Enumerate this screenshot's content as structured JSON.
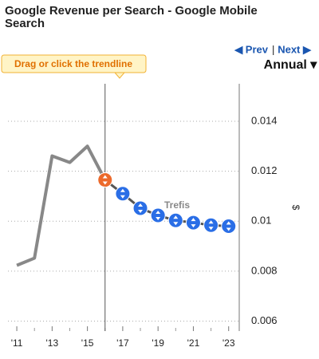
{
  "chart_data": {
    "type": "line",
    "title": "Google Revenue per Search - Google Mobile Search",
    "nav_prev": "◀ Prev",
    "nav_next": "Next ▶",
    "period": "Annual ▾",
    "hint": "Drag or click the trendline",
    "annotation": "Trefis",
    "y_label": "$",
    "x": [
      2011,
      2012,
      2013,
      2014,
      2015,
      2016,
      2017,
      2018,
      2019,
      2020,
      2021,
      2022,
      2023
    ],
    "series": [
      {
        "color": "#888888",
        "values": [
          0.00823,
          0.00852,
          0.01261,
          0.01235,
          0.013,
          0.01165,
          null,
          null,
          null,
          null,
          null,
          null,
          null
        ]
      },
      {
        "color": "#2a6ee6",
        "line_color": "#555555",
        "highlight_color": "#ec6a2c",
        "values": [
          null,
          null,
          null,
          null,
          null,
          0.01165,
          0.0111,
          0.01052,
          0.01023,
          0.01003,
          0.00994,
          0.00984,
          0.0098
        ]
      }
    ],
    "divider_x": 2016,
    "xlim": [
      2010.5,
      2023.6
    ],
    "xticks": [
      {
        "value": 2011,
        "label": "'11"
      },
      {
        "value": 2013,
        "label": "'13"
      },
      {
        "value": 2015,
        "label": "'15"
      },
      {
        "value": 2017,
        "label": "'17"
      },
      {
        "value": 2019,
        "label": "'19"
      },
      {
        "value": 2021,
        "label": "'21"
      },
      {
        "value": 2023,
        "label": "'23"
      }
    ],
    "ylim": [
      0.0056,
      0.0155
    ],
    "yticks": [
      0.006,
      0.008,
      0.01,
      0.012,
      0.014
    ],
    "grid": true
  }
}
